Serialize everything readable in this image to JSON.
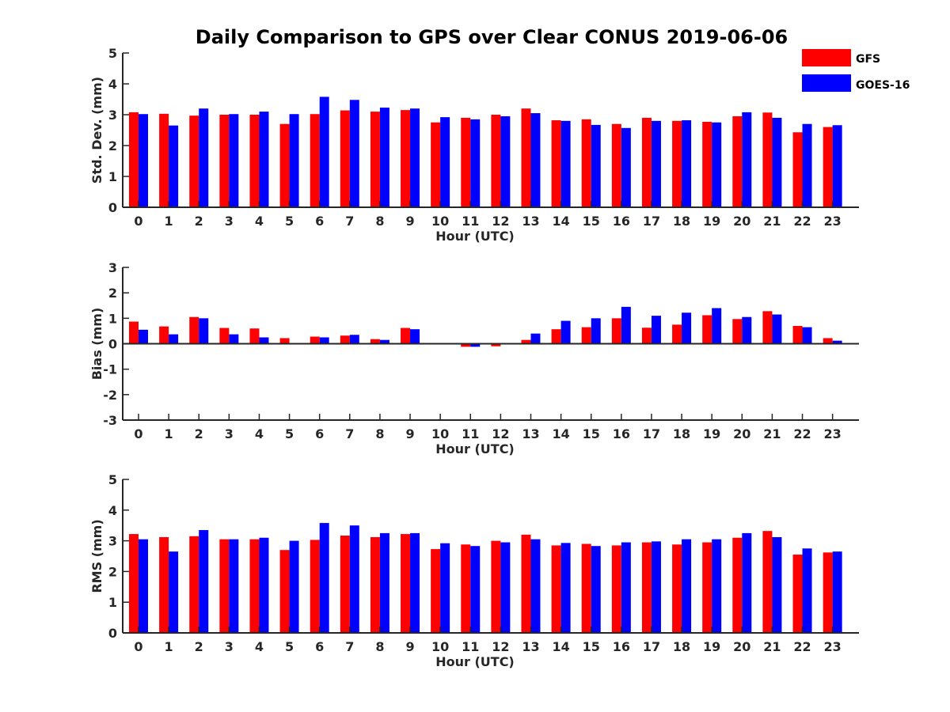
{
  "chart_data": {
    "title": "Daily Comparison to GPS over Clear CONUS 2019-06-06",
    "type": "bar",
    "categories": [
      "0",
      "1",
      "2",
      "3",
      "4",
      "5",
      "6",
      "7",
      "8",
      "9",
      "10",
      "11",
      "12",
      "13",
      "14",
      "15",
      "16",
      "17",
      "18",
      "19",
      "20",
      "21",
      "22",
      "23"
    ],
    "series_meta": [
      {
        "name": "GFS",
        "color": "#ff0000"
      },
      {
        "name": "GOES-16",
        "color": "#0000ff"
      }
    ],
    "legend": {
      "position": "top-right",
      "entries": [
        "GFS",
        "GOES-16"
      ]
    },
    "panels": [
      {
        "id": "std",
        "ylabel": "Std. Dev. (mm)",
        "xlabel": "Hour (UTC)",
        "ylim": [
          0,
          5
        ],
        "yticks": [
          "0",
          "1",
          "2",
          "3",
          "4",
          "5"
        ],
        "zero_line": false,
        "series": [
          {
            "name": "GFS",
            "values": [
              3.08,
              3.03,
              2.97,
              3.0,
              3.0,
              2.7,
              3.02,
              3.14,
              3.1,
              3.15,
              2.75,
              2.9,
              3.0,
              3.2,
              2.82,
              2.85,
              2.7,
              2.9,
              2.8,
              2.77,
              2.95,
              3.07,
              2.43,
              2.6
            ]
          },
          {
            "name": "GOES-16",
            "values": [
              3.02,
              2.65,
              3.2,
              3.02,
              3.1,
              3.02,
              3.58,
              3.48,
              3.23,
              3.2,
              2.92,
              2.85,
              2.95,
              3.05,
              2.8,
              2.67,
              2.57,
              2.8,
              2.82,
              2.75,
              3.08,
              2.9,
              2.7,
              2.66
            ]
          }
        ]
      },
      {
        "id": "bias",
        "ylabel": "Bias (mm)",
        "xlabel": "Hour (UTC)",
        "ylim": [
          -3,
          3
        ],
        "yticks": [
          "-3",
          "-2",
          "-1",
          "0",
          "1",
          "2",
          "3"
        ],
        "zero_line": true,
        "series": [
          {
            "name": "GFS",
            "values": [
              0.87,
              0.68,
              1.05,
              0.62,
              0.6,
              0.22,
              0.28,
              0.32,
              0.18,
              0.62,
              0.0,
              -0.12,
              -0.1,
              0.15,
              0.57,
              0.65,
              1.0,
              0.63,
              0.75,
              1.12,
              0.97,
              1.28,
              0.7,
              0.22
            ]
          },
          {
            "name": "GOES-16",
            "values": [
              0.55,
              0.37,
              1.0,
              0.37,
              0.25,
              0.0,
              0.25,
              0.35,
              0.15,
              0.57,
              0.03,
              -0.12,
              -0.03,
              0.4,
              0.9,
              1.0,
              1.45,
              1.1,
              1.22,
              1.4,
              1.05,
              1.15,
              0.65,
              0.12
            ]
          }
        ]
      },
      {
        "id": "rms",
        "ylabel": "RMS (mm)",
        "xlabel": "Hour (UTC)",
        "ylim": [
          0,
          5
        ],
        "yticks": [
          "0",
          "1",
          "2",
          "3",
          "4",
          "5"
        ],
        "zero_line": false,
        "series": [
          {
            "name": "GFS",
            "values": [
              3.22,
              3.12,
              3.15,
              3.05,
              3.05,
              2.7,
              3.03,
              3.17,
              3.12,
              3.22,
              2.73,
              2.88,
              3.0,
              3.2,
              2.85,
              2.9,
              2.85,
              2.95,
              2.88,
              2.95,
              3.1,
              3.32,
              2.55,
              2.62
            ]
          },
          {
            "name": "GOES-16",
            "values": [
              3.05,
              2.65,
              3.35,
              3.05,
              3.1,
              3.0,
              3.58,
              3.5,
              3.25,
              3.25,
              2.92,
              2.83,
              2.95,
              3.05,
              2.93,
              2.83,
              2.95,
              2.98,
              3.05,
              3.05,
              3.25,
              3.12,
              2.75,
              2.65
            ]
          }
        ]
      }
    ]
  }
}
